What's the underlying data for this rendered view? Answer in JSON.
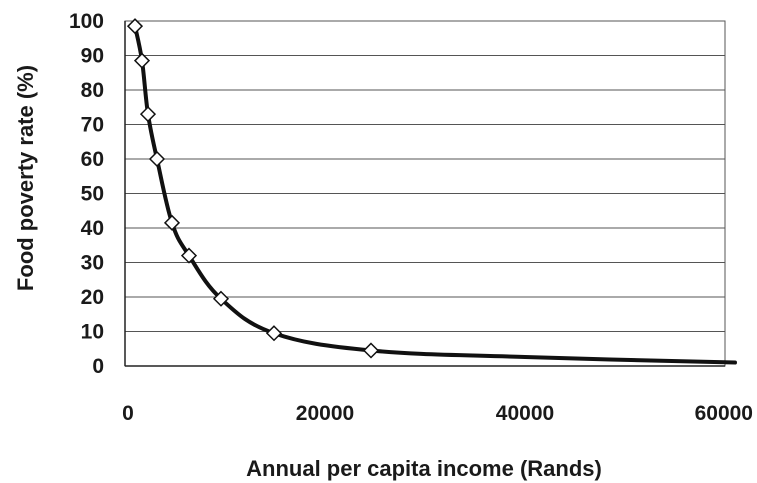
{
  "chart_data": {
    "type": "line",
    "title": "",
    "xlabel": "Annual per capita income (Rands)",
    "ylabel": "Food poverty rate (%)",
    "xlim": [
      0,
      60000
    ],
    "ylim": [
      0,
      100
    ],
    "x_ticks": [
      "0",
      "20000",
      "40000",
      "60000"
    ],
    "y_ticks": [
      "0",
      "10",
      "20",
      "30",
      "40",
      "50",
      "60",
      "70",
      "80",
      "90",
      "100"
    ],
    "grid": "horizontal",
    "legend": "none",
    "series": [
      {
        "markers": [
          {
            "x": 1000,
            "y": 98.5
          },
          {
            "x": 1700,
            "y": 88.5
          },
          {
            "x": 2300,
            "y": 73
          },
          {
            "x": 3200,
            "y": 60
          },
          {
            "x": 4700,
            "y": 41.5
          },
          {
            "x": 6400,
            "y": 32
          },
          {
            "x": 9600,
            "y": 19.5
          },
          {
            "x": 14900,
            "y": 9.5
          },
          {
            "x": 24600,
            "y": 4.5
          }
        ],
        "curve": [
          {
            "x": 1000,
            "y": 98.5
          },
          {
            "x": 1700,
            "y": 88.5
          },
          {
            "x": 2300,
            "y": 73
          },
          {
            "x": 3200,
            "y": 60
          },
          {
            "x": 4700,
            "y": 41.5
          },
          {
            "x": 6400,
            "y": 32
          },
          {
            "x": 9600,
            "y": 19.5
          },
          {
            "x": 14900,
            "y": 9.5
          },
          {
            "x": 24600,
            "y": 4.5
          },
          {
            "x": 40000,
            "y": 2.6
          },
          {
            "x": 61000,
            "y": 1
          }
        ]
      }
    ],
    "colors": {
      "line": "#111111",
      "marker_fill": "#ffffff",
      "grid": "#555555",
      "text": "#1a1a1a"
    }
  }
}
